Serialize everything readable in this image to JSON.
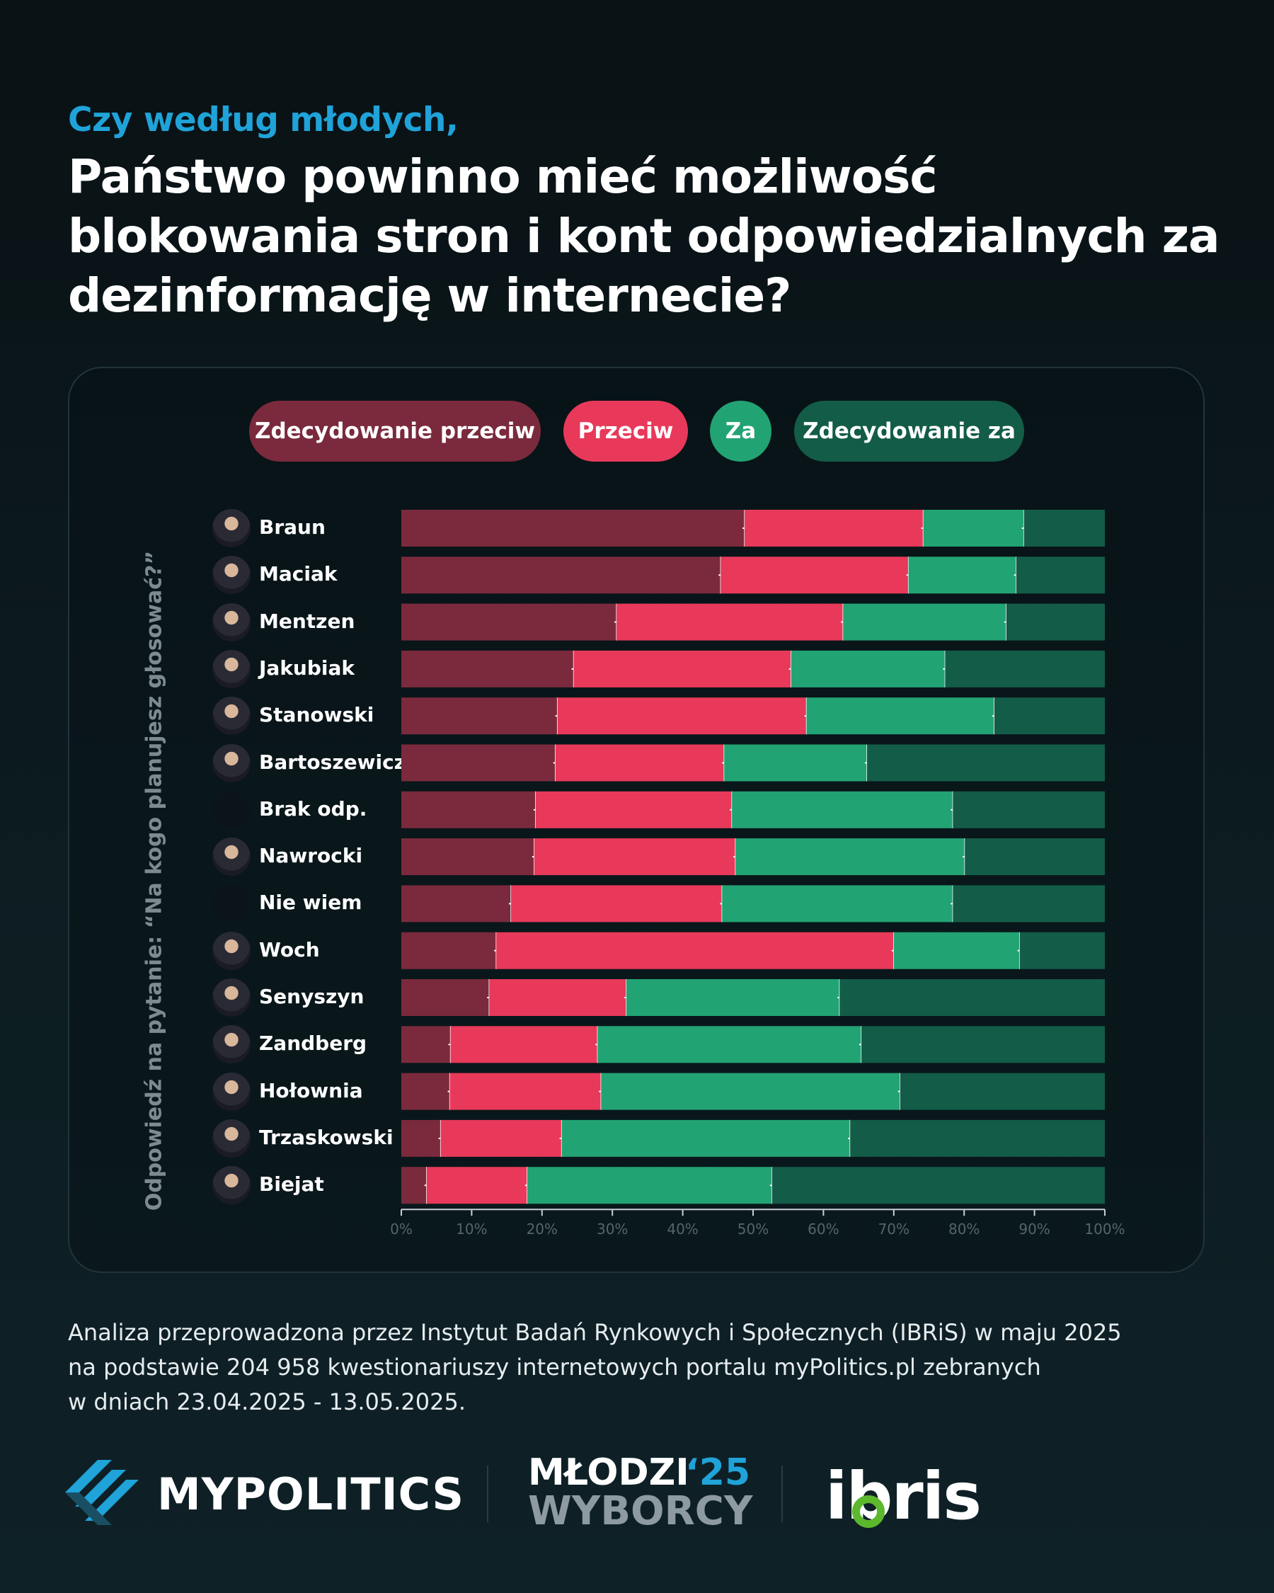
{
  "header": {
    "subtitle": "Czy według młodych,",
    "title": "Państwo powinno mieć możliwość blokowania stron i kont odpowiedzialnych za dezinformację w internecie?"
  },
  "legend": {
    "items": [
      {
        "label": "Zdecydowanie przeciw",
        "color": "#7a2a3c"
      },
      {
        "label": "Przeciw",
        "color": "#e8395a"
      },
      {
        "label": "Za",
        "color": "#22a373"
      },
      {
        "label": "Zdecydowanie za",
        "color": "#135c48"
      }
    ]
  },
  "chart_data": {
    "type": "bar",
    "orientation": "horizontal",
    "stacked": true,
    "ylabel": "Odpowiedź na pytanie: “Na kogo planujesz głosować?”",
    "xlim": [
      0,
      100
    ],
    "x_ticks": [
      "0%",
      "10%",
      "20%",
      "30%",
      "40%",
      "50%",
      "60%",
      "70%",
      "80%",
      "90%",
      "100%"
    ],
    "categories": [
      "Braun",
      "Maciak",
      "Mentzen",
      "Jakubiak",
      "Stanowski",
      "Bartoszewicz",
      "Brak odp.",
      "Nawrocki",
      "Nie wiem",
      "Woch",
      "Senyszyn",
      "Zandberg",
      "Hołownia",
      "Trzaskowski",
      "Biejat"
    ],
    "series": [
      {
        "name": "Zdecydowanie przeciw",
        "color": "#7a2a3c",
        "values": [
          48.8,
          45.4,
          30.6,
          24.5,
          22.2,
          21.9,
          19.1,
          18.9,
          15.6,
          13.5,
          12.5,
          7.0,
          6.9,
          5.6,
          3.6
        ]
      },
      {
        "name": "Przeciw",
        "color": "#e8395a",
        "values": [
          25.4,
          26.7,
          32.2,
          30.9,
          35.4,
          24.0,
          27.9,
          28.6,
          30.0,
          56.5,
          19.5,
          20.9,
          21.5,
          17.2,
          14.3
        ]
      },
      {
        "name": "Za",
        "color": "#22a373",
        "values": [
          14.3,
          15.3,
          23.2,
          21.9,
          26.7,
          20.3,
          31.4,
          32.6,
          32.8,
          17.9,
          30.3,
          37.5,
          42.5,
          41.0,
          34.8
        ]
      },
      {
        "name": "Zdecydowanie za",
        "color": "#135c48",
        "values": [
          11.5,
          12.6,
          14.0,
          22.7,
          15.7,
          33.8,
          21.6,
          19.9,
          21.6,
          12.1,
          37.7,
          34.6,
          29.1,
          36.2,
          47.3
        ]
      }
    ]
  },
  "source": {
    "line1": "Analiza przeprowadzona przez Instytut Badań Rynkowych i Społecznych (IBRiS) w maju 2025",
    "line2": "na podstawie 204 958 kwestionariuszy internetowych portalu myPolitics.pl zebranych",
    "line3": "w dniach 23.04.2025 - 13.05.2025."
  },
  "logos": {
    "mypolitics": "MYPOLITICS",
    "mlodzi_line1": "MŁODZI",
    "mlodzi_year": "‘25",
    "mlodzi_line2": "WYBORCY",
    "ibris": "ibris"
  }
}
